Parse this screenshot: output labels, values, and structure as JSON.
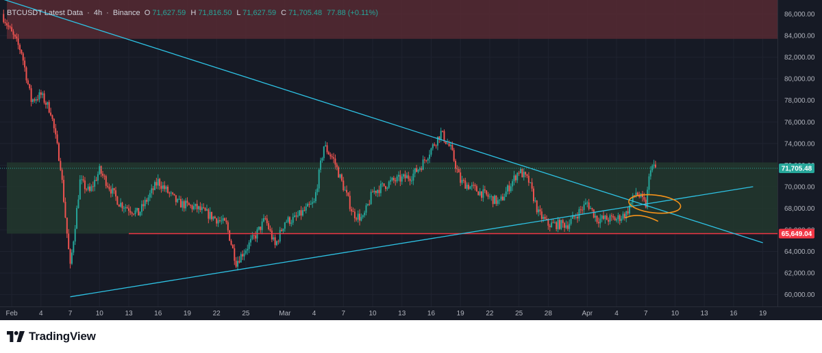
{
  "header": {
    "symbol": "BTCUSDT Latest Data",
    "interval": "4h",
    "exchange": "Binance",
    "open_label": "O",
    "open": "71,627.59",
    "high_label": "H",
    "high": "71,816.50",
    "low_label": "L",
    "low": "71,627.59",
    "close_label": "C",
    "close": "71,705.48",
    "change": "77.88 (+0.11%)"
  },
  "footer": {
    "brand": "TradingView"
  },
  "colors": {
    "background": "#161a25",
    "up": "#26a69a",
    "down": "#ef5350",
    "trendline": "#2ec4e6",
    "support_line": "#f23645",
    "resistance_zone": "#5a2a33",
    "range_zone": "#233a2e",
    "annotation": "#f7931a"
  },
  "chart_data": {
    "type": "candlestick",
    "symbol": "BTCUSDT",
    "timeframe": "4h",
    "x_ticks": [
      "Feb",
      "4",
      "7",
      "10",
      "13",
      "16",
      "19",
      "22",
      "25",
      "Mar",
      "4",
      "7",
      "10",
      "13",
      "16",
      "19",
      "22",
      "25",
      "28",
      "Apr",
      "4",
      "7",
      "10",
      "13",
      "16",
      "19"
    ],
    "y_ticks": [
      "86,000.00",
      "84,000.00",
      "82,000.00",
      "80,000.00",
      "78,000.00",
      "76,000.00",
      "74,000.00",
      "72,000.00",
      "70,000.00",
      "68,000.00",
      "66,000.00",
      "64,000.00",
      "62,000.00",
      "60,000.00"
    ],
    "ylim": [
      58900,
      87300
    ],
    "price_path": [
      [
        "2025-01-31",
        86000
      ],
      [
        "2025-02-01",
        84200
      ],
      [
        "2025-02-02",
        82500
      ],
      [
        "2025-02-03",
        78000
      ],
      [
        "2025-02-04",
        78500
      ],
      [
        "2025-02-05",
        77000
      ],
      [
        "2025-02-06",
        72000
      ],
      [
        "2025-02-07",
        62500
      ],
      [
        "2025-02-08",
        70500
      ],
      [
        "2025-02-09",
        69500
      ],
      [
        "2025-02-10",
        71500
      ],
      [
        "2025-02-12",
        68500
      ],
      [
        "2025-02-14",
        67500
      ],
      [
        "2025-02-16",
        70500
      ],
      [
        "2025-02-18",
        68500
      ],
      [
        "2025-02-20",
        68000
      ],
      [
        "2025-02-23",
        66500
      ],
      [
        "2025-02-24",
        63000
      ],
      [
        "2025-02-26",
        65500
      ],
      [
        "2025-02-27",
        67000
      ],
      [
        "2025-02-28",
        64500
      ],
      [
        "2025-03-01",
        66800
      ],
      [
        "2025-03-02",
        67000
      ],
      [
        "2025-03-04",
        68500
      ],
      [
        "2025-03-05",
        73800
      ],
      [
        "2025-03-06",
        72500
      ],
      [
        "2025-03-08",
        67500
      ],
      [
        "2025-03-09",
        67000
      ],
      [
        "2025-03-10",
        69500
      ],
      [
        "2025-03-12",
        70500
      ],
      [
        "2025-03-14",
        71000
      ],
      [
        "2025-03-15",
        72000
      ],
      [
        "2025-03-17",
        75000
      ],
      [
        "2025-03-18",
        73500
      ],
      [
        "2025-03-19",
        70500
      ],
      [
        "2025-03-21",
        69500
      ],
      [
        "2025-03-23",
        68500
      ],
      [
        "2025-03-25",
        71500
      ],
      [
        "2025-03-26",
        70500
      ],
      [
        "2025-03-27",
        67500
      ],
      [
        "2025-03-28",
        66500
      ],
      [
        "2025-03-30",
        66500
      ],
      [
        "2025-04-01",
        68500
      ],
      [
        "2025-04-02",
        67000
      ],
      [
        "2025-04-04",
        67000
      ],
      [
        "2025-04-05",
        67500
      ],
      [
        "2025-04-06",
        69500
      ],
      [
        "2025-04-07",
        68300
      ],
      [
        "2025-04-07T12",
        71900
      ],
      [
        "2025-04-08",
        71705
      ]
    ],
    "last_price": "71,705.48",
    "support_level": "65,649.04",
    "zones": [
      {
        "kind": "resistance",
        "from": 83700,
        "to": 87300
      },
      {
        "kind": "range",
        "from": 65650,
        "to": 72250
      }
    ],
    "horizontal_lines": [
      65649.04
    ],
    "trendlines": [
      {
        "kind": "descending",
        "from": [
          "2025-01-31",
          87400
        ],
        "to": [
          "2025-04-19",
          64800
        ]
      },
      {
        "kind": "ascending",
        "from": [
          "2025-02-07",
          59800
        ],
        "to": [
          "2025-04-18",
          70000
        ]
      }
    ],
    "annotations": [
      {
        "kind": "ellipse",
        "at": [
          "2025-04-07",
          68400
        ]
      },
      {
        "kind": "stroke",
        "at": [
          "2025-04-07",
          67300
        ]
      }
    ]
  }
}
